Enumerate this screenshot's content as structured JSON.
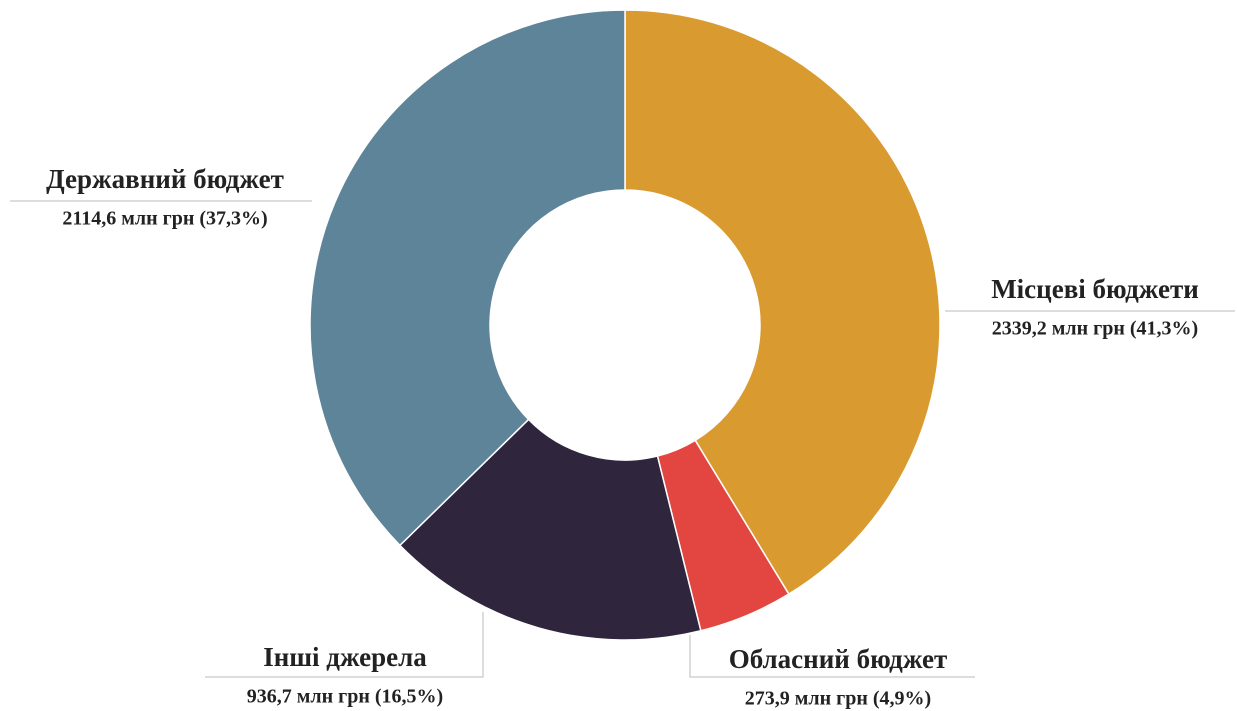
{
  "chart_data": {
    "type": "pie",
    "donut": true,
    "categories": [
      "Місцеві бюджети",
      "Обласний бюджет",
      "Інші джерела",
      "Державний бюджет"
    ],
    "values": [
      2339.2,
      273.9,
      936.7,
      2114.6
    ],
    "value_labels": [
      "2339,2 млн грн (41,3%)",
      "273,9 млн грн (4,9%)",
      "936,7 млн грн (16,5%)",
      "2114,6 млн грн (37,3%)"
    ],
    "colors": [
      "#d99b30",
      "#e34640",
      "#2f263e",
      "#5e8499"
    ]
  }
}
